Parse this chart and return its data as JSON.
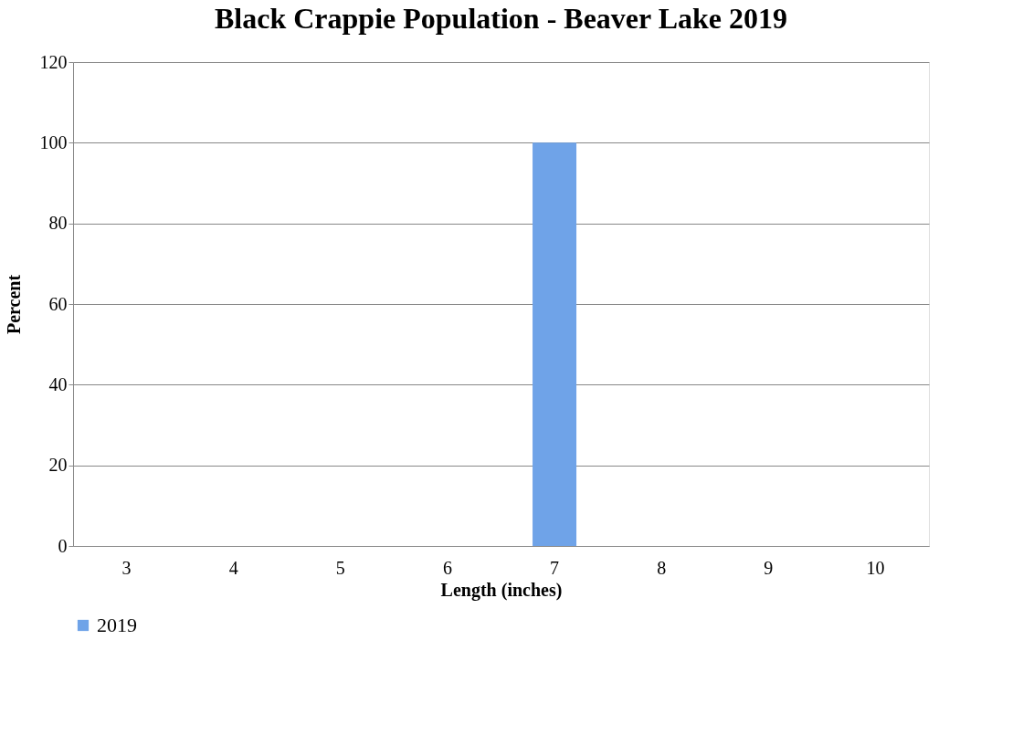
{
  "chart_data": {
    "type": "bar",
    "title": "Black Crappie Population - Beaver Lake 2019",
    "xlabel": "Length (inches)",
    "ylabel": "Percent",
    "categories": [
      "3",
      "4",
      "5",
      "6",
      "7",
      "8",
      "9",
      "10"
    ],
    "series": [
      {
        "name": "2019",
        "color": "#6fa3e8",
        "values": [
          0,
          0,
          0,
          0,
          100,
          0,
          0,
          0
        ]
      }
    ],
    "ylim": [
      0,
      120
    ],
    "yticks": [
      0,
      20,
      40,
      60,
      80,
      100,
      120
    ],
    "grid": "y",
    "legend": "bottom"
  }
}
